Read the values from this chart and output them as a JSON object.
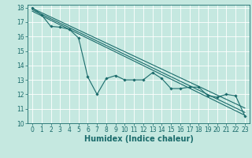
{
  "xlabel": "Humidex (Indice chaleur)",
  "bg_color": "#c5e8e0",
  "grid_color": "#ffffff",
  "line_color": "#1a6b6b",
  "marker_color": "#1a6b6b",
  "xlim": [
    -0.5,
    23.5
  ],
  "ylim": [
    10,
    18.2
  ],
  "xticks": [
    0,
    1,
    2,
    3,
    4,
    5,
    6,
    7,
    8,
    9,
    10,
    11,
    12,
    13,
    14,
    15,
    16,
    17,
    18,
    19,
    20,
    21,
    22,
    23
  ],
  "yticks": [
    10,
    11,
    12,
    13,
    14,
    15,
    16,
    17,
    18
  ],
  "main_line_x": [
    0,
    1,
    2,
    3,
    4,
    5,
    6,
    7,
    8,
    9,
    10,
    11,
    12,
    13,
    14,
    15,
    16,
    17,
    18,
    19,
    20,
    21,
    22,
    23
  ],
  "main_line_y": [
    18.0,
    17.5,
    16.7,
    16.65,
    16.5,
    15.9,
    13.2,
    12.0,
    13.1,
    13.3,
    13.0,
    13.0,
    13.0,
    13.5,
    13.1,
    12.4,
    12.4,
    12.5,
    12.5,
    11.9,
    11.8,
    12.0,
    11.9,
    10.5
  ],
  "line1_x": [
    0,
    23
  ],
  "line1_y": [
    17.95,
    11.05
  ],
  "line2_x": [
    0,
    23
  ],
  "line2_y": [
    17.85,
    10.75
  ],
  "line3_x": [
    0,
    23
  ],
  "line3_y": [
    17.75,
    10.55
  ],
  "tick_fontsize": 5.5,
  "xlabel_fontsize": 7,
  "figsize": [
    3.2,
    2.0
  ],
  "dpi": 100
}
